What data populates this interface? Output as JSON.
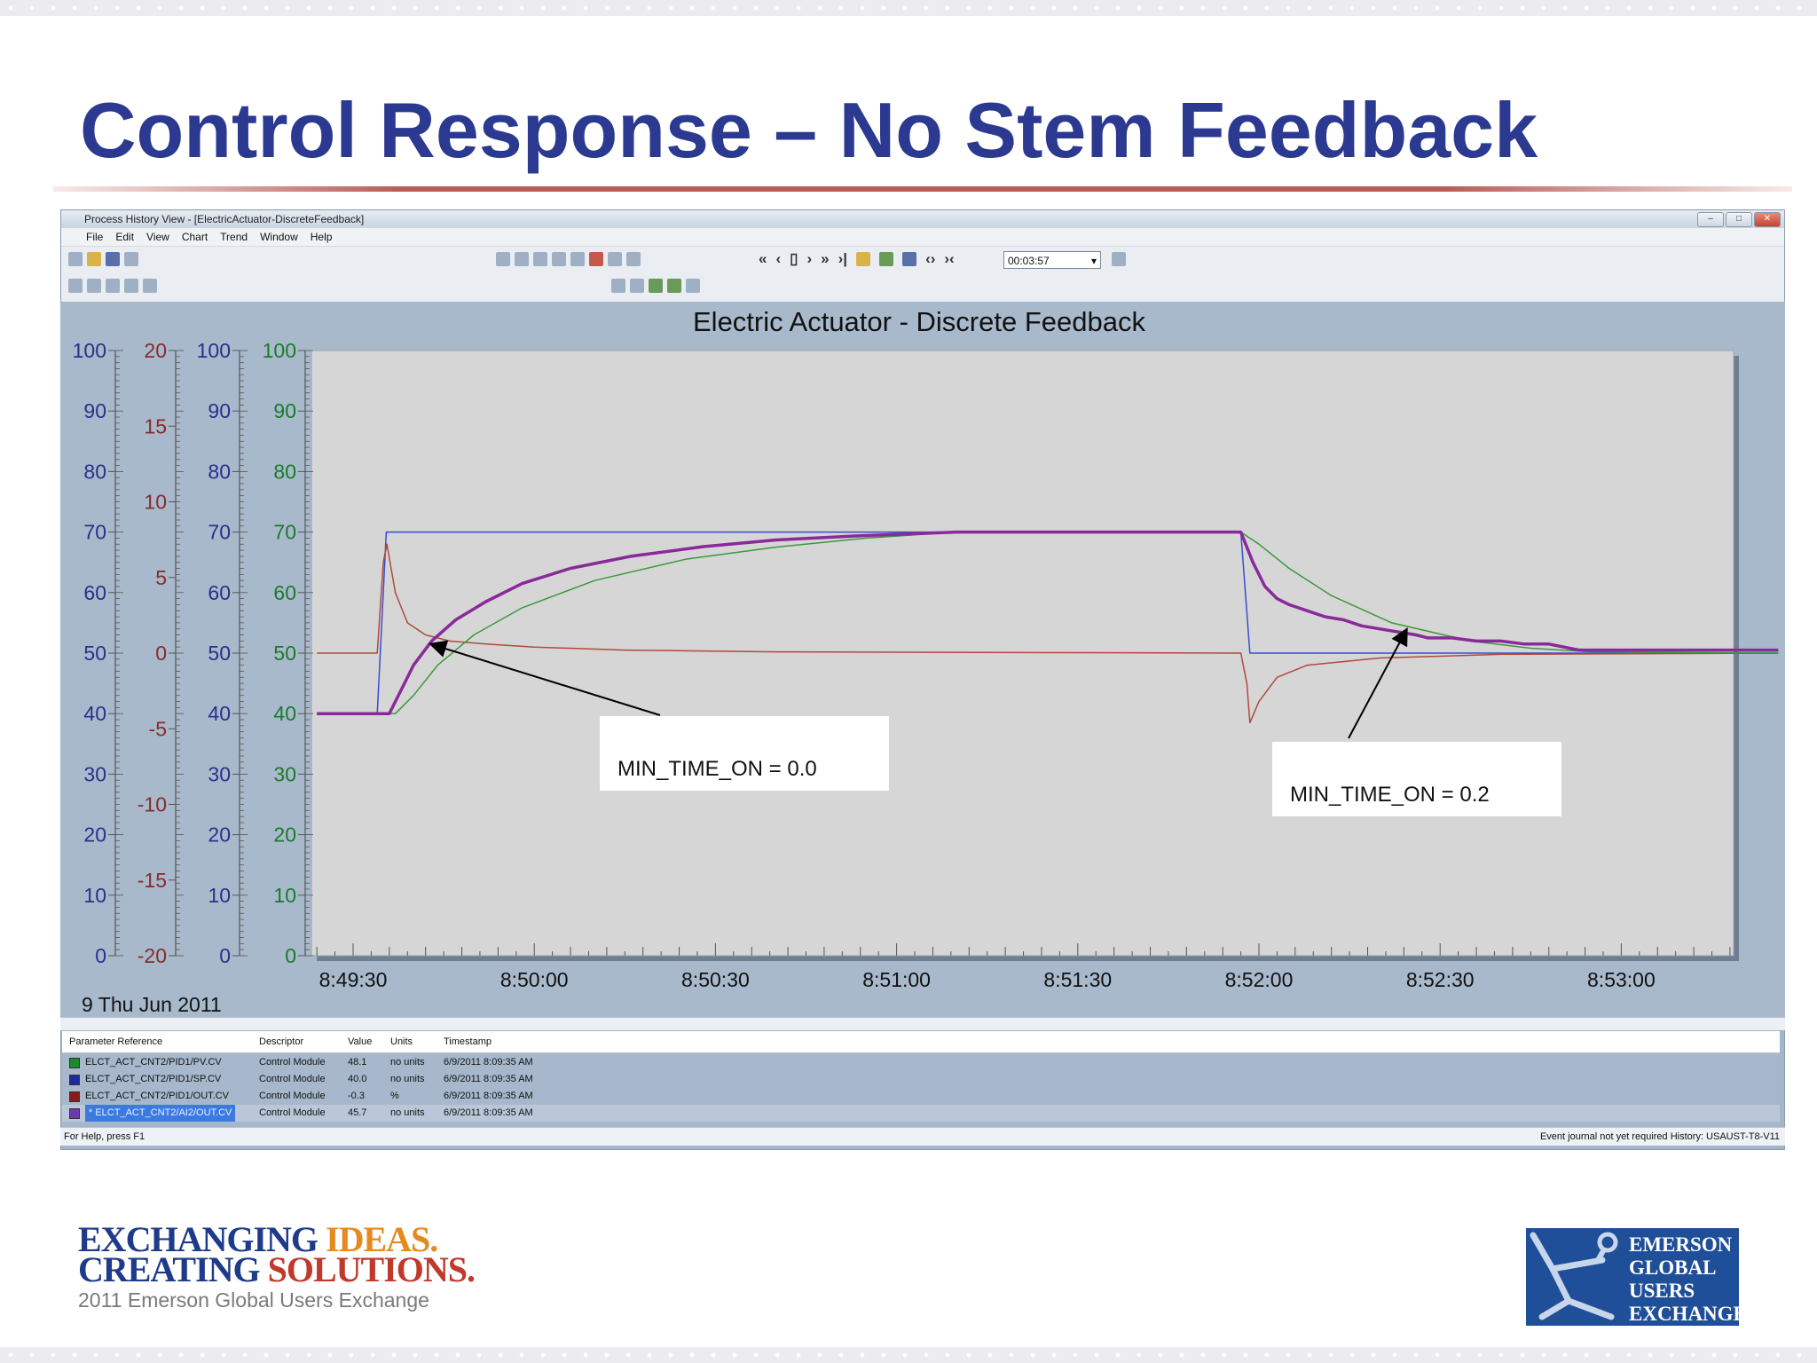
{
  "slide": {
    "title": "Control Response – No Stem Feedback",
    "footer_line1_a": "EXCHANGING ",
    "footer_line1_b": "IDEAS.",
    "footer_line2_a": "CREATING ",
    "footer_line2_b": "SOLUTIONS.",
    "footer_line3": "2011 Emerson Global Users Exchange",
    "logo_lines": [
      "EMERSON",
      "GLOBAL",
      "USERS",
      "EXCHANGE"
    ]
  },
  "app": {
    "window_title": "Process History View - [ElectricActuator-DiscreteFeedback]",
    "menu": [
      "File",
      "Edit",
      "View",
      "Chart",
      "Trend",
      "Window",
      "Help"
    ],
    "time_span": "00:03:57",
    "status_left": "For Help, press F1",
    "status_right": "Event journal not yet required   History: USAUST-T8-V11"
  },
  "parameters": {
    "headers": [
      "Parameter Reference",
      "Descriptor",
      "Value",
      "Units",
      "Timestamp"
    ],
    "rows": [
      {
        "ref": "ELCT_ACT_CNT2/PID1/PV.CV",
        "desc": "Control Module",
        "value": "48.1",
        "units": "no units",
        "timestamp": "6/9/2011 8:09:35 AM",
        "color": "#1a8a2a"
      },
      {
        "ref": "ELCT_ACT_CNT2/PID1/SP.CV",
        "desc": "Control Module",
        "value": "40.0",
        "units": "no units",
        "timestamp": "6/9/2011 8:09:35 AM",
        "color": "#1f2a9a"
      },
      {
        "ref": "ELCT_ACT_CNT2/PID1/OUT.CV",
        "desc": "Control Module",
        "value": "-0.3",
        "units": "%",
        "timestamp": "6/9/2011 8:09:35 AM",
        "color": "#8a1a1a"
      },
      {
        "ref": "* ELCT_ACT_CNT2/AI2/OUT.CV",
        "desc": "Control Module",
        "value": "45.7",
        "units": "no units",
        "timestamp": "6/9/2011 8:09:35 AM",
        "color": "#6a3aa8"
      }
    ]
  },
  "chart_data": {
    "type": "line",
    "title": "Electric Actuator - Discrete Feedback",
    "date_label": "9 Thu Jun 2011",
    "x_ticks": [
      "8:49:30",
      "8:50:00",
      "8:50:30",
      "8:51:00",
      "8:51:30",
      "8:52:00",
      "8:52:30",
      "8:53:00"
    ],
    "x_tick_seconds": [
      0,
      30,
      60,
      90,
      120,
      150,
      180,
      210
    ],
    "xlim_seconds": [
      -6,
      230
    ],
    "grid": false,
    "axes": [
      {
        "color": "#2b2f8a",
        "ticks": [
          100,
          90,
          80,
          70,
          60,
          50,
          40,
          30,
          20,
          10,
          0
        ],
        "ylim": [
          0,
          100
        ]
      },
      {
        "color": "#8a2a2a",
        "ticks": [
          20,
          15,
          10,
          5,
          0,
          -5,
          -10,
          -15,
          -20
        ],
        "ylim": [
          -20,
          20
        ]
      },
      {
        "color": "#2b2f8a",
        "ticks": [
          100,
          90,
          80,
          70,
          60,
          50,
          40,
          30,
          20,
          10,
          0
        ],
        "ylim": [
          0,
          100
        ]
      },
      {
        "color": "#1a7a2a",
        "ticks": [
          100,
          90,
          80,
          70,
          60,
          50,
          40,
          30,
          20,
          10,
          0
        ],
        "ylim": [
          0,
          100
        ]
      }
    ],
    "series": [
      {
        "color": "#3a4bd0",
        "width": 1.5,
        "t": [
          -6,
          4,
          5.5,
          83,
          147,
          148.5,
          236
        ],
        "v": [
          40,
          40,
          70,
          70,
          70,
          50,
          50
        ]
      },
      {
        "color": "#b04a3a",
        "width": 1.5,
        "t": [
          -6,
          4,
          5.0,
          5.6,
          7,
          9,
          12,
          16,
          22,
          30,
          45,
          70,
          147,
          148,
          148.5,
          150,
          153,
          158,
          170,
          190,
          236
        ],
        "v": [
          50,
          50,
          65,
          68,
          60,
          55,
          53,
          52,
          51.5,
          51,
          50.5,
          50.2,
          50,
          45,
          38.5,
          42,
          46,
          48,
          49.2,
          49.8,
          50
        ]
      },
      {
        "color": "#3a9a3a",
        "width": 1.5,
        "t": [
          -6,
          7,
          10,
          14,
          20,
          28,
          40,
          55,
          70,
          85,
          100,
          147,
          150,
          155,
          162,
          172,
          185,
          195,
          205,
          236
        ],
        "v": [
          40,
          40,
          43,
          48,
          53,
          57.5,
          62,
          65.5,
          67.5,
          69,
          70,
          70,
          68,
          64,
          59.5,
          55,
          52,
          50.8,
          50.2,
          50
        ]
      },
      {
        "color": "#8a2a9a",
        "width": 3.5,
        "t": [
          -6,
          6,
          8,
          10,
          13,
          17,
          22,
          28,
          36,
          46,
          58,
          70,
          84,
          100,
          147,
          149,
          151,
          153,
          155,
          158,
          161,
          164,
          167,
          170,
          173,
          176,
          178,
          182,
          186,
          190,
          194,
          198,
          203,
          208,
          236
        ],
        "v": [
          40,
          40,
          44,
          48,
          52,
          55.5,
          58.5,
          61.5,
          64,
          66,
          67.6,
          68.7,
          69.4,
          70,
          70,
          65,
          61,
          59,
          58,
          57,
          56,
          55.5,
          54.5,
          54,
          53.5,
          53,
          52.5,
          52.5,
          52,
          52,
          51.5,
          51.5,
          50.5,
          50.5,
          50.5
        ]
      }
    ],
    "annotations": [
      {
        "text": "MIN_TIME_ON = 0.0",
        "t_target": 12.8,
        "v_target": 51.5
      },
      {
        "text": "MIN_TIME_ON = 0.2",
        "t_target": 174.5,
        "v_target": 54
      }
    ]
  }
}
